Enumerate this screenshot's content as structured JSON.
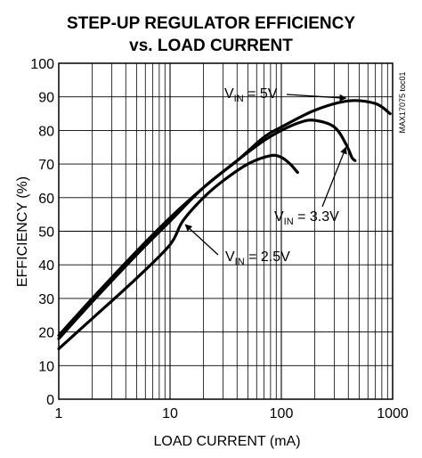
{
  "chart_data": {
    "type": "line",
    "title_line1": "STEP-UP REGULATOR EFFICIENCY",
    "title_line2": "vs. LOAD CURRENT",
    "xlabel": "LOAD CURRENT (mA)",
    "ylabel": "EFFICIENCY (%)",
    "x_scale": "log",
    "xlim": [
      1,
      1000
    ],
    "ylim": [
      0,
      100
    ],
    "x_ticks": [
      1,
      10,
      100,
      1000
    ],
    "x_tick_labels": [
      "1",
      "10",
      "100",
      "1000"
    ],
    "y_ticks": [
      0,
      10,
      20,
      30,
      40,
      50,
      60,
      70,
      80,
      90,
      100
    ],
    "y_tick_labels": [
      "0",
      "10",
      "20",
      "30",
      "40",
      "50",
      "60",
      "70",
      "80",
      "90",
      "100"
    ],
    "grid": true,
    "watermark": "MAX17075 toc01",
    "series": [
      {
        "name": "5V",
        "label_main": "V",
        "label_sub": "IN",
        "label_rest": " = 5V",
        "x": [
          1,
          2,
          5,
          10,
          20,
          40,
          70,
          100,
          200,
          400,
          700,
          950
        ],
        "y": [
          18,
          29,
          43,
          53,
          63,
          71,
          78,
          81,
          86,
          88.8,
          88,
          85
        ]
      },
      {
        "name": "3.3V",
        "label_main": "V",
        "label_sub": "IN",
        "label_rest": " = 3.3V",
        "x": [
          1,
          2,
          5,
          10,
          20,
          40,
          70,
          100,
          150,
          200,
          300,
          380,
          430,
          460
        ],
        "y": [
          19,
          30,
          44,
          54,
          63,
          71,
          77,
          80,
          82.5,
          83,
          81,
          76,
          72,
          71
        ]
      },
      {
        "name": "2.5V",
        "label_main": "V",
        "label_sub": "IN",
        "label_rest": " = 2.5V",
        "x": [
          1,
          2,
          5,
          10,
          13,
          20,
          30,
          50,
          80,
          100,
          120,
          140
        ],
        "y": [
          15,
          24,
          36,
          46,
          53,
          60,
          65,
          70,
          72.5,
          72,
          70,
          67.5
        ]
      }
    ]
  }
}
